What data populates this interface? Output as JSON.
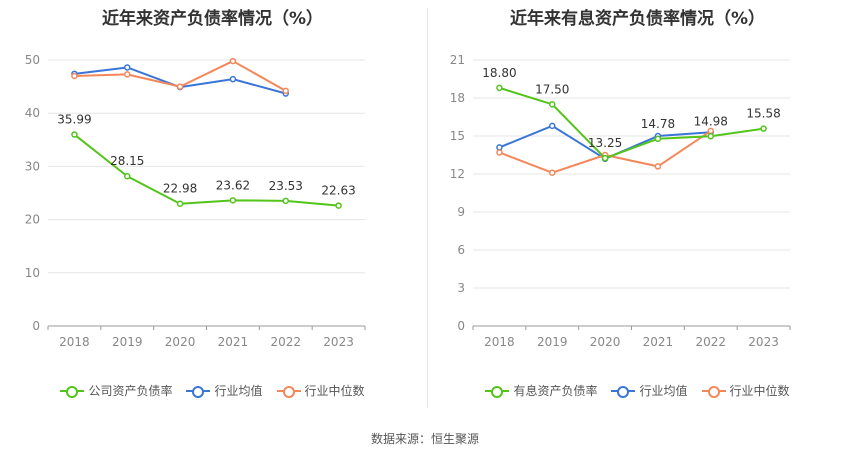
{
  "footer": "数据来源：恒生聚源",
  "chart_data": [
    {
      "type": "line",
      "title": "近年来资产负债率情况（%）",
      "categories": [
        "2018",
        "2019",
        "2020",
        "2021",
        "2022",
        "2023"
      ],
      "ylim": [
        0,
        50
      ],
      "yticks": [
        "0",
        "10",
        "20",
        "30",
        "40",
        "50"
      ],
      "grid": true,
      "legend_position": "bottom",
      "series": [
        {
          "name": "公司资产负债率",
          "color": "#52c41a",
          "values": [
            35.99,
            28.15,
            22.98,
            23.62,
            23.53,
            22.63
          ],
          "labels": [
            "35.99",
            "28.15",
            "22.98",
            "23.62",
            "23.53",
            "22.63"
          ]
        },
        {
          "name": "行业均值",
          "color": "#3a75d8",
          "values": [
            47.4,
            48.6,
            44.9,
            46.4,
            43.7,
            null
          ]
        },
        {
          "name": "行业中位数",
          "color": "#f4875a",
          "values": [
            47.0,
            47.3,
            45.0,
            49.8,
            44.2,
            null
          ]
        }
      ]
    },
    {
      "type": "line",
      "title": "近年来有息资产负债率情况（%）",
      "categories": [
        "2018",
        "2019",
        "2020",
        "2021",
        "2022",
        "2023"
      ],
      "ylim": [
        0,
        21
      ],
      "yticks": [
        "0",
        "3",
        "6",
        "9",
        "12",
        "15",
        "18",
        "21"
      ],
      "grid": true,
      "legend_position": "bottom",
      "series": [
        {
          "name": "有息资产负债率",
          "color": "#52c41a",
          "values": [
            18.8,
            17.5,
            13.25,
            14.78,
            14.98,
            15.58
          ],
          "labels": [
            "18.80",
            "17.50",
            "13.25",
            "14.78",
            "14.98",
            "15.58"
          ]
        },
        {
          "name": "行业均值",
          "color": "#3a75d8",
          "values": [
            14.1,
            15.8,
            13.2,
            15.0,
            15.3,
            null
          ]
        },
        {
          "name": "行业中位数",
          "color": "#f4875a",
          "values": [
            13.7,
            12.1,
            13.5,
            12.6,
            15.4,
            null
          ]
        }
      ]
    }
  ]
}
